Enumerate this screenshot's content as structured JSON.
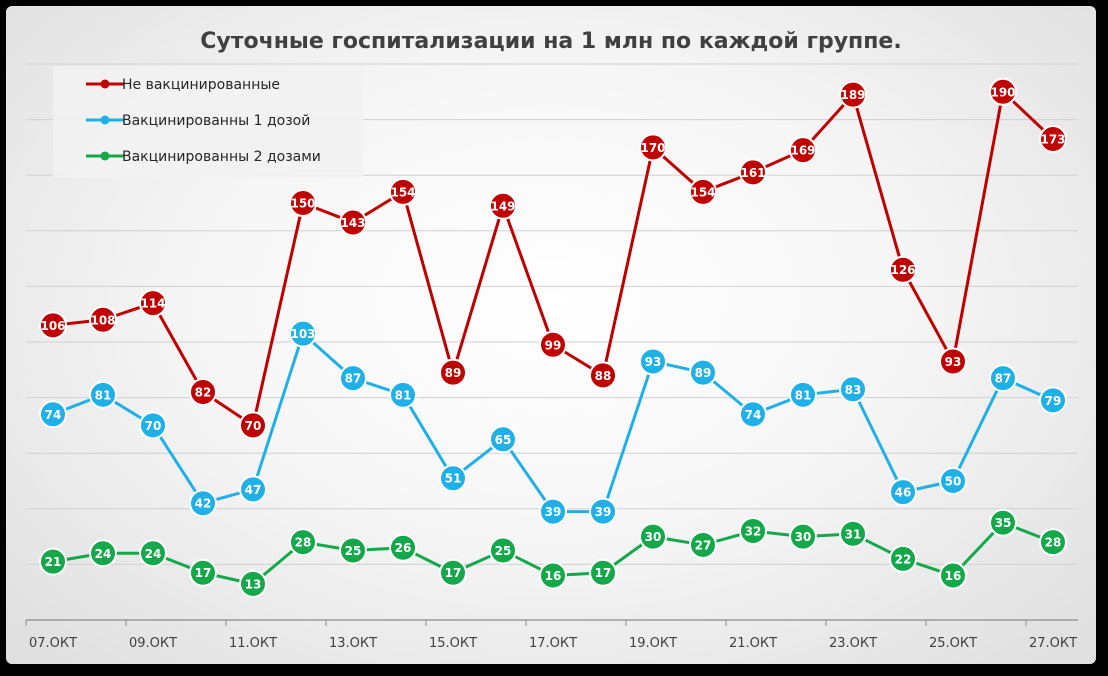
{
  "chart_data": {
    "type": "line",
    "title": "Суточные госпитализации на 1 млн по каждой группе.",
    "xlabel": "",
    "ylabel": "",
    "ylim": [
      0,
      200
    ],
    "grid": true,
    "legend_position": "top-left",
    "x_tick_labels": [
      "07.ОКТ",
      "09.ОКТ",
      "11.ОКТ",
      "13.ОКТ",
      "15.ОКТ",
      "17.ОКТ",
      "19.ОКТ",
      "21.ОКТ",
      "23.ОКТ",
      "25.ОКТ",
      "27.ОКТ"
    ],
    "x": [
      "07.10",
      "08.10",
      "09.10",
      "10.10",
      "11.10",
      "12.10",
      "13.10",
      "14.10",
      "15.10",
      "16.10",
      "17.10",
      "18.10",
      "19.10",
      "20.10",
      "21.10",
      "22.10",
      "23.10",
      "24.10",
      "25.10",
      "26.10",
      "27.10"
    ],
    "series": [
      {
        "name": "Не вакцинированные",
        "color": "#c00000",
        "values": [
          106,
          108,
          114,
          82,
          70,
          150,
          143,
          154,
          89,
          149,
          99,
          88,
          170,
          154,
          161,
          169,
          189,
          126,
          93,
          190,
          173
        ]
      },
      {
        "name": "Вакцинированны 1 дозой",
        "color": "#1fb0e8",
        "values": [
          74,
          81,
          70,
          42,
          47,
          103,
          87,
          81,
          51,
          65,
          39,
          39,
          93,
          89,
          74,
          81,
          83,
          46,
          50,
          87,
          79
        ]
      },
      {
        "name": "Вакцинированны 2 дозами",
        "color": "#14a84a",
        "values": [
          21,
          24,
          24,
          17,
          13,
          28,
          25,
          26,
          17,
          25,
          16,
          17,
          30,
          27,
          32,
          30,
          31,
          22,
          16,
          35,
          28
        ]
      }
    ]
  }
}
